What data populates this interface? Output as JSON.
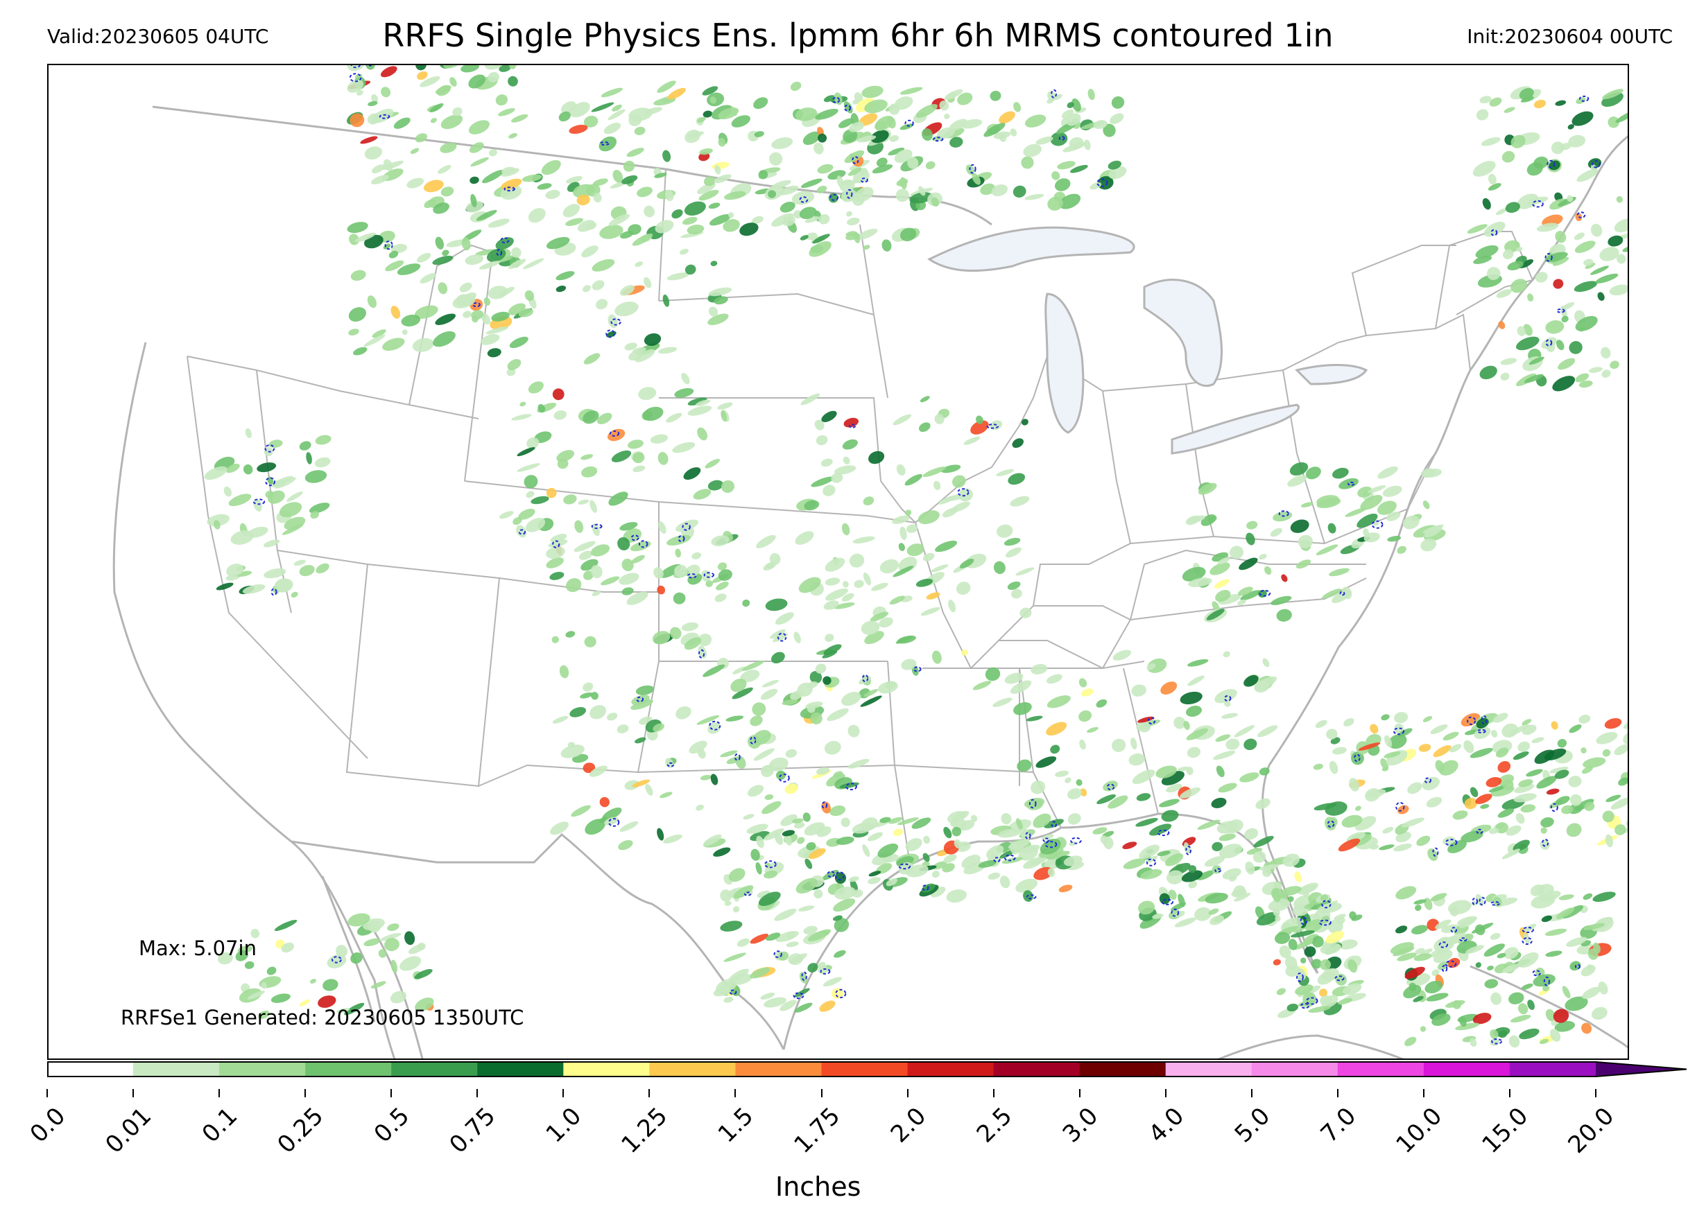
{
  "header": {
    "valid": "Valid:20230605 04UTC",
    "title": "RRFS Single Physics Ens. lpmm 6hr 6h MRMS contoured 1in",
    "init": "Init:20230604 00UTC"
  },
  "annotations": {
    "max": "Max: 5.07in",
    "generated": "RRFSe1 Generated: 20230605 1350UTC"
  },
  "colorbar": {
    "label": "Inches",
    "ticks": [
      "0.0",
      "0.01",
      "0.1",
      "0.25",
      "0.5",
      "0.75",
      "1.0",
      "1.25",
      "1.5",
      "1.75",
      "2.0",
      "2.5",
      "3.0",
      "4.0",
      "5.0",
      "7.0",
      "10.0",
      "15.0",
      "20.0"
    ],
    "colors": [
      "#ffffff",
      "#c8e9c1",
      "#a1db96",
      "#6fc36f",
      "#3a9d4e",
      "#0a6d2d",
      "#fffd8c",
      "#fdc94e",
      "#fb8c3c",
      "#f34a26",
      "#d01a1a",
      "#a30026",
      "#6e0000",
      "#f9b0ef",
      "#f68ae9",
      "#ee46e3",
      "#d815d8",
      "#9a10c0"
    ],
    "extend_color": "#4b0070"
  },
  "map_colors": {
    "border": "#b4b4b4",
    "lake": "#eef2f9",
    "mrms_contour": "#1f2bd6"
  }
}
